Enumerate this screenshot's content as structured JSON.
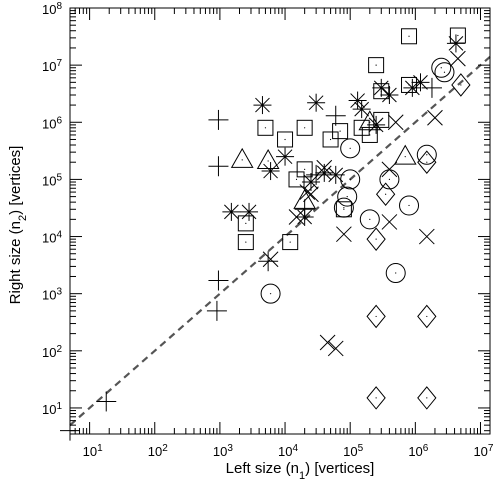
{
  "chart_data": {
    "type": "scatter",
    "title": "",
    "xlabel": {
      "prefix": "Left size (n",
      "sub": "1",
      "suffix": ") [vertices]"
    },
    "ylabel": {
      "prefix": "Right size (n",
      "sub": "2",
      "suffix": ") [vertices]"
    },
    "x_scale": "log",
    "y_scale": "log",
    "xlim": [
      5,
      14000000
    ],
    "ylim": [
      3.5,
      100000000
    ],
    "x_ticks": [
      {
        "value": 10,
        "base": "10",
        "exp": "1"
      },
      {
        "value": 100,
        "base": "10",
        "exp": "2"
      },
      {
        "value": 1000,
        "base": "10",
        "exp": "3"
      },
      {
        "value": 10000,
        "base": "10",
        "exp": "4"
      },
      {
        "value": 100000,
        "base": "10",
        "exp": "5"
      },
      {
        "value": 1000000,
        "base": "10",
        "exp": "6"
      },
      {
        "value": 10000000,
        "base": "10",
        "exp": "7"
      }
    ],
    "y_ticks": [
      {
        "value": 10,
        "base": "10",
        "exp": "1"
      },
      {
        "value": 100,
        "base": "10",
        "exp": "2"
      },
      {
        "value": 1000,
        "base": "10",
        "exp": "3"
      },
      {
        "value": 10000,
        "base": "10",
        "exp": "4"
      },
      {
        "value": 100000,
        "base": "10",
        "exp": "5"
      },
      {
        "value": 1000000,
        "base": "10",
        "exp": "6"
      },
      {
        "value": 10000000,
        "base": "10",
        "exp": "7"
      },
      {
        "value": 100000000,
        "base": "10",
        "exp": "8"
      }
    ],
    "diagonal": {
      "from": [
        5,
        5
      ],
      "to": [
        14000000,
        14000000
      ],
      "style": "dashed",
      "color": "#555555"
    },
    "grid": false,
    "marker_color": "#000000",
    "series": [
      {
        "marker": "plus",
        "points": [
          [
            5,
            4
          ],
          [
            18,
            13
          ],
          [
            900,
            500
          ],
          [
            950,
            1700
          ],
          [
            950,
            170000
          ],
          [
            950,
            1100000
          ],
          [
            5500,
            3700
          ],
          [
            20000,
            30000
          ],
          [
            30000,
            120000
          ],
          [
            60000,
            1300000
          ],
          [
            1800000,
            4000000
          ]
        ]
      },
      {
        "marker": "cross",
        "points": [
          [
            6000,
            4000
          ],
          [
            15000,
            22000
          ],
          [
            22000,
            60000
          ],
          [
            25000,
            55000
          ],
          [
            40000,
            160000
          ],
          [
            45000,
            140
          ],
          [
            60000,
            110
          ],
          [
            80000,
            11000
          ],
          [
            400000,
            18000
          ],
          [
            400000,
            150000
          ],
          [
            500000,
            1000000
          ],
          [
            1500000,
            10000
          ],
          [
            2000000,
            1200000
          ],
          [
            4500000,
            13000000
          ]
        ]
      },
      {
        "marker": "star",
        "points": [
          [
            1500,
            27000
          ],
          [
            2800,
            27000
          ],
          [
            4500,
            2000000
          ],
          [
            6000,
            140000
          ],
          [
            10000,
            250000
          ],
          [
            20000,
            22000
          ],
          [
            25000,
            90000
          ],
          [
            30000,
            2200000
          ],
          [
            40000,
            130000
          ],
          [
            60000,
            120000
          ],
          [
            130000,
            2400000
          ],
          [
            150000,
            1700000
          ],
          [
            250000,
            900000
          ],
          [
            300000,
            4000000
          ],
          [
            400000,
            3000000
          ],
          [
            900000,
            4000000
          ],
          [
            1200000,
            5000000
          ],
          [
            4200000,
            24000000
          ]
        ]
      },
      {
        "marker": "square",
        "points": [
          [
            2500,
            17000
          ],
          [
            2500,
            8000
          ],
          [
            5000,
            800000
          ],
          [
            10000,
            500000
          ],
          [
            12000,
            8000
          ],
          [
            15000,
            100000
          ],
          [
            20000,
            800000
          ],
          [
            20000,
            150000
          ],
          [
            50000,
            500000
          ],
          [
            70000,
            700000
          ],
          [
            80000,
            30000
          ],
          [
            150000,
            800000
          ],
          [
            200000,
            600000
          ],
          [
            250000,
            10000000
          ],
          [
            300000,
            3500000
          ],
          [
            300000,
            1100000
          ],
          [
            800000,
            32000000
          ],
          [
            800000,
            4500000
          ],
          [
            4500000,
            33000000
          ]
        ]
      },
      {
        "marker": "triangle",
        "points": [
          [
            2200,
            220000
          ],
          [
            5500,
            210000
          ],
          [
            20000,
            42000
          ],
          [
            200000,
            1000000
          ],
          [
            700000,
            250000
          ]
        ]
      },
      {
        "marker": "circle",
        "points": [
          [
            6000,
            1000
          ],
          [
            80000,
            32000
          ],
          [
            90000,
            50000
          ],
          [
            100000,
            100000
          ],
          [
            100000,
            350000
          ],
          [
            200000,
            20000
          ],
          [
            400000,
            100000
          ],
          [
            500000,
            2300
          ],
          [
            800000,
            35000
          ],
          [
            1500000,
            270000
          ],
          [
            2500000,
            9000000
          ],
          [
            2800000,
            7500000
          ]
        ]
      },
      {
        "marker": "diamond",
        "points": [
          [
            250000,
            15
          ],
          [
            250000,
            400
          ],
          [
            250000,
            9000
          ],
          [
            350000,
            55000
          ],
          [
            1500000,
            15
          ],
          [
            1500000,
            400
          ],
          [
            1500000,
            200000
          ],
          [
            5000000,
            4500000
          ]
        ]
      }
    ]
  }
}
